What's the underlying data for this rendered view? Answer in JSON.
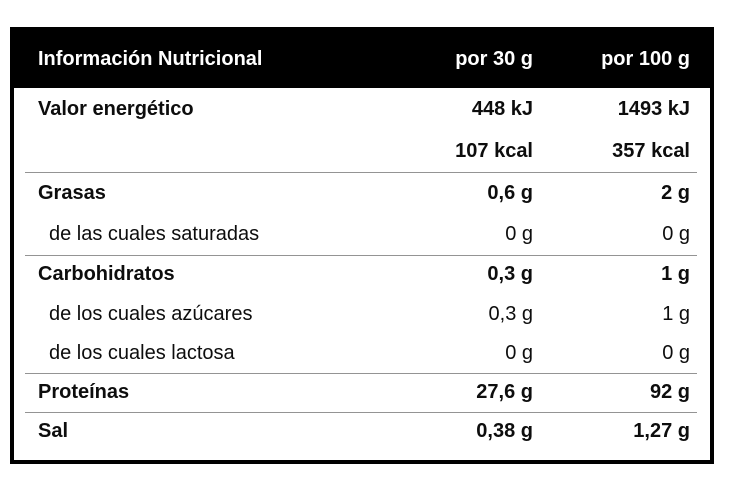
{
  "header": {
    "title": "Información Nutricional",
    "col_per_30g": "por 30 g",
    "col_per_100g": "por 100 g"
  },
  "rows": [
    {
      "label": "Valor energético",
      "per_30g": "448 kJ",
      "per_100g": "1493 kJ",
      "bold": true,
      "indent": false,
      "separator_above": false
    },
    {
      "label": "",
      "per_30g": "107 kcal",
      "per_100g": "357 kcal",
      "bold": true,
      "indent": false,
      "separator_above": false
    },
    {
      "label": "Grasas",
      "per_30g": "0,6 g",
      "per_100g": "2 g",
      "bold": true,
      "indent": false,
      "separator_above": true
    },
    {
      "label": "de las cuales saturadas",
      "per_30g": "0 g",
      "per_100g": "0 g",
      "bold": false,
      "indent": true,
      "separator_above": false
    },
    {
      "label": "Carbohidratos",
      "per_30g": "0,3 g",
      "per_100g": "1 g",
      "bold": true,
      "indent": false,
      "separator_above": true
    },
    {
      "label": "de los cuales azúcares",
      "per_30g": "0,3 g",
      "per_100g": "1 g",
      "bold": false,
      "indent": true,
      "separator_above": false
    },
    {
      "label": "de los cuales lactosa",
      "per_30g": "0 g",
      "per_100g": "0 g",
      "bold": false,
      "indent": true,
      "separator_above": false
    },
    {
      "label": "Proteínas",
      "per_30g": "27,6 g",
      "per_100g": "92 g",
      "bold": true,
      "indent": false,
      "separator_above": true
    },
    {
      "label": "Sal",
      "per_30g": "0,38 g",
      "per_100g": "1,27 g",
      "bold": true,
      "indent": false,
      "separator_above": true
    }
  ],
  "colors": {
    "page_bg": "#ffffff",
    "border": "#000000",
    "header_bg": "#000000",
    "header_text": "#ffffff",
    "body_text": "#0d0d0d",
    "separator": "#949494"
  }
}
